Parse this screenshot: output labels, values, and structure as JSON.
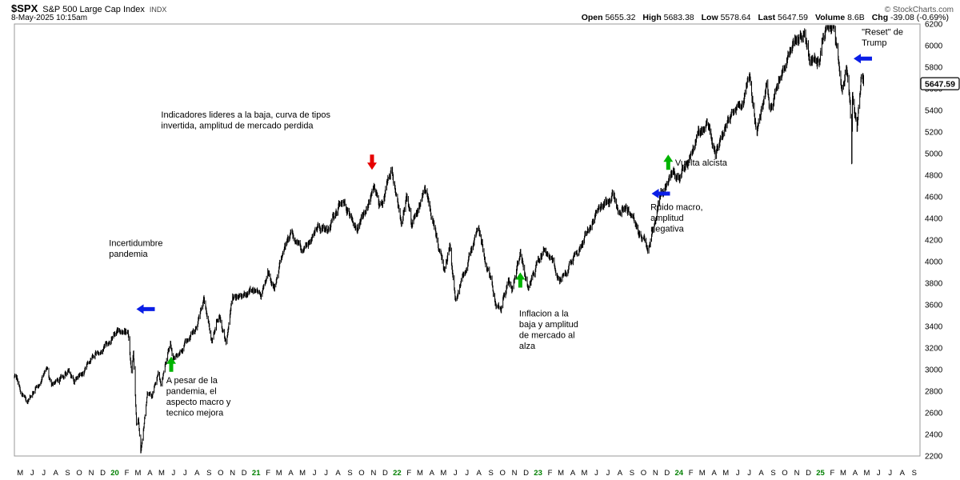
{
  "header": {
    "symbol": "$SPX",
    "name": "S&P 500 Large Cap Index",
    "exchange": "INDX",
    "copyright": "© StockCharts.com",
    "datetime": "8-May-2025 10:15am",
    "quote": {
      "open_label": "Open",
      "open": "5655.32",
      "high_label": "High",
      "high": "5683.38",
      "low_label": "Low",
      "low": "5578.64",
      "last_label": "Last",
      "last": "5647.59",
      "volume_label": "Volume",
      "volume": "8.6B",
      "chg_label": "Chg",
      "chg": "-39.08 (-0.69%)"
    }
  },
  "chart_data": {
    "type": "ohlc-bar",
    "title": "$SPX S&P 500 Large Cap Index",
    "grid": false,
    "bar_color": "#000000",
    "y_axis": {
      "min": 2200,
      "max": 6200,
      "step": 200,
      "side": "right"
    },
    "x_axis": {
      "start": "2019-05-01",
      "end": "2025-10-01",
      "month_letters": "JFMAMJJASOND",
      "year_color": "#008000"
    },
    "last_date": "2025-05-08",
    "last_price_value": 5647.59,
    "last_price_tag": "5647.59",
    "series_anchors": [
      [
        "2019-05-01",
        2924
      ],
      [
        "2019-06-03",
        2744
      ],
      [
        "2019-07-26",
        3026
      ],
      [
        "2019-08-05",
        2845
      ],
      [
        "2019-08-23",
        2847
      ],
      [
        "2019-09-19",
        3007
      ],
      [
        "2019-10-02",
        2888
      ],
      [
        "2019-11-27",
        3154
      ],
      [
        "2019-12-31",
        3231
      ],
      [
        "2020-01-17",
        3330
      ],
      [
        "2020-02-19",
        3386
      ],
      [
        "2020-02-28",
        2954
      ],
      [
        "2020-03-04",
        3130
      ],
      [
        "2020-03-12",
        2481
      ],
      [
        "2020-03-17",
        2529
      ],
      [
        "2020-03-23",
        2237
      ],
      [
        "2020-04-09",
        2790
      ],
      [
        "2020-04-21",
        2737
      ],
      [
        "2020-05-08",
        2930
      ],
      [
        "2020-05-14",
        2820
      ],
      [
        "2020-06-08",
        3232
      ],
      [
        "2020-06-15",
        3066
      ],
      [
        "2020-07-22",
        3276
      ],
      [
        "2020-08-28",
        3508
      ],
      [
        "2020-09-02",
        3580
      ],
      [
        "2020-09-24",
        3237
      ],
      [
        "2020-10-12",
        3534
      ],
      [
        "2020-10-30",
        3270
      ],
      [
        "2020-11-16",
        3627
      ],
      [
        "2020-12-31",
        3756
      ],
      [
        "2021-01-29",
        3714
      ],
      [
        "2021-02-16",
        3933
      ],
      [
        "2021-03-04",
        3768
      ],
      [
        "2021-04-16",
        4185
      ],
      [
        "2021-05-12",
        4063
      ],
      [
        "2021-06-14",
        4255
      ],
      [
        "2021-07-19",
        4258
      ],
      [
        "2021-09-02",
        4537
      ],
      [
        "2021-10-04",
        4300
      ],
      [
        "2021-11-18",
        4705
      ],
      [
        "2021-12-03",
        4538
      ],
      [
        "2022-01-03",
        4796
      ],
      [
        "2022-01-27",
        4326
      ],
      [
        "2022-02-09",
        4587
      ],
      [
        "2022-02-24",
        4225
      ],
      [
        "2022-03-29",
        4631
      ],
      [
        "2022-05-02",
        4155
      ],
      [
        "2022-05-19",
        3900
      ],
      [
        "2022-06-02",
        4177
      ],
      [
        "2022-06-16",
        3666
      ],
      [
        "2022-08-16",
        4305
      ],
      [
        "2022-09-30",
        3586
      ],
      [
        "2022-10-12",
        3577
      ],
      [
        "2022-11-01",
        3871
      ],
      [
        "2022-11-09",
        3748
      ],
      [
        "2022-12-01",
        4080
      ],
      [
        "2022-12-22",
        3783
      ],
      [
        "2023-02-02",
        4180
      ],
      [
        "2023-03-13",
        3855
      ],
      [
        "2023-05-01",
        4167
      ],
      [
        "2023-06-15",
        4426
      ],
      [
        "2023-07-27",
        4607
      ],
      [
        "2023-08-18",
        4370
      ],
      [
        "2023-09-01",
        4516
      ],
      [
        "2023-10-27",
        4117
      ],
      [
        "2023-12-01",
        4594
      ],
      [
        "2023-12-28",
        4783
      ],
      [
        "2024-01-17",
        4740
      ],
      [
        "2024-03-28",
        5254
      ],
      [
        "2024-04-19",
        4967
      ],
      [
        "2024-05-21",
        5321
      ],
      [
        "2024-06-28",
        5460
      ],
      [
        "2024-07-16",
        5667
      ],
      [
        "2024-08-05",
        5186
      ],
      [
        "2024-08-30",
        5648
      ],
      [
        "2024-09-06",
        5408
      ],
      [
        "2024-10-17",
        5841
      ],
      [
        "2024-11-11",
        6001
      ],
      [
        "2024-12-06",
        6090
      ],
      [
        "2024-12-19",
        5867
      ],
      [
        "2025-01-13",
        5827
      ],
      [
        "2025-01-23",
        6118
      ],
      [
        "2025-02-19",
        6144
      ],
      [
        "2025-03-13",
        5521
      ],
      [
        "2025-03-25",
        5777
      ],
      [
        "2025-04-03",
        5396
      ],
      [
        "2025-04-07",
        4870
      ],
      [
        "2025-04-09",
        5457
      ],
      [
        "2025-04-21",
        5158
      ],
      [
        "2025-05-02",
        5686
      ],
      [
        "2025-05-08",
        5647.59
      ]
    ],
    "annotations": [
      {
        "name": "incertidumbre-pandemia",
        "lines": [
          "Incertidumbre",
          "pandemia"
        ],
        "text_date": "2020-01-01",
        "text_price": 4210,
        "arrow": {
          "shape": "left",
          "color": "#0a1ee6",
          "date": "2020-03-12",
          "price": 3560
        }
      },
      {
        "name": "macro-mejora",
        "lines": [
          "A pesar de la",
          "pandemia, el",
          "aspecto macro y",
          "tecnico mejora"
        ],
        "text_date": "2020-05-28",
        "text_price": 2940,
        "arrow": {
          "shape": "up",
          "color": "#00b400",
          "date": "2020-06-10",
          "price": 3120
        }
      },
      {
        "name": "indicadores-lideres-baja",
        "lines": [
          "Indicadores lideres a la baja, curva de tipos",
          "invertida, amplitud de mercado perdida"
        ],
        "text_date": "2020-05-15",
        "text_price": 5400,
        "arrow": {
          "shape": "down",
          "color": "#e60000",
          "date": "2021-11-12",
          "price": 4850
        }
      },
      {
        "name": "inflacion-baja",
        "lines": [
          "Inflacion a la",
          "baja y amplitud",
          "de mercado al",
          "alza"
        ],
        "text_date": "2022-11-28",
        "text_price": 3560,
        "arrow": {
          "shape": "up",
          "color": "#00b400",
          "date": "2022-12-01",
          "price": 3900
        }
      },
      {
        "name": "vuelta-alcista",
        "lines": [
          "Vuelta alcista"
        ],
        "text_date": "2024-01-06",
        "text_price": 4955,
        "arrow": {
          "shape": "up",
          "color": "#00b400",
          "date": "2023-12-19",
          "price": 4990
        }
      },
      {
        "name": "ruido-macro",
        "lines": [
          "Ruido macro,",
          "amplitud",
          "negativa"
        ],
        "text_date": "2023-11-03",
        "text_price": 4545,
        "arrow": {
          "shape": "left",
          "color": "#0a1ee6",
          "date": "2023-11-06",
          "price": 4630
        }
      },
      {
        "name": "reset-de-trump",
        "lines": [
          "\"Reset\" de",
          "Trump"
        ],
        "text_date": "2025-05-03",
        "text_price": 6165,
        "arrow": {
          "shape": "left",
          "color": "#0a1ee6",
          "date": "2025-04-12",
          "price": 5880
        }
      }
    ]
  }
}
